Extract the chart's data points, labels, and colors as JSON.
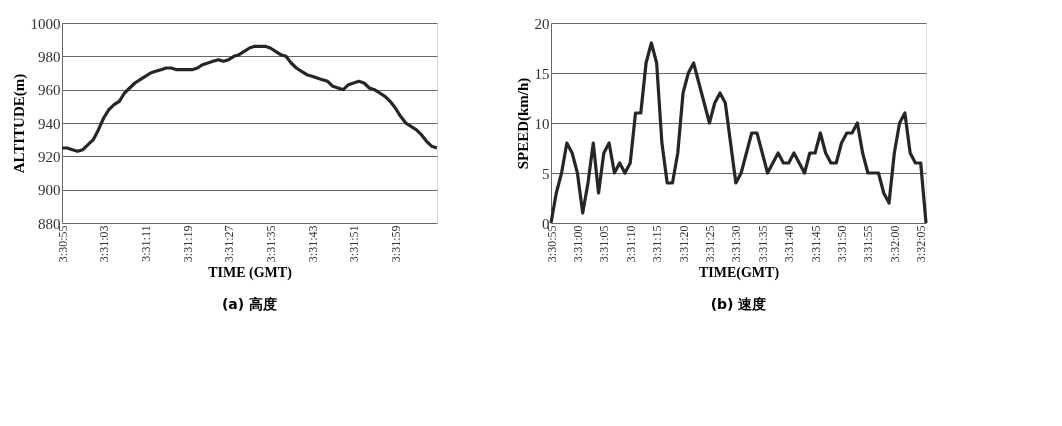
{
  "chart_data": [
    {
      "type": "line",
      "title": "(a)  高度",
      "xlabel": "TIME (GMT)",
      "ylabel": "ALTITUDE(m)",
      "categories": [
        "3:30:55",
        null,
        null,
        null,
        null,
        null,
        null,
        null,
        "3:31:03",
        null,
        null,
        null,
        null,
        null,
        null,
        null,
        "3:31:11",
        null,
        null,
        null,
        null,
        null,
        null,
        null,
        "3:31:19",
        null,
        null,
        null,
        null,
        null,
        null,
        null,
        "3:31:27",
        null,
        null,
        null,
        null,
        null,
        null,
        null,
        "3:31:35",
        null,
        null,
        null,
        null,
        null,
        null,
        null,
        "3:31:43",
        null,
        null,
        null,
        null,
        null,
        null,
        null,
        "3:31:51",
        null,
        null,
        null,
        null,
        null,
        null,
        null,
        "3:31:59",
        null,
        null,
        null,
        null,
        null,
        null,
        null,
        null
      ],
      "series": [
        {
          "color": "#262626",
          "values": [
            925,
            925,
            924,
            923,
            924,
            927,
            930,
            936,
            943,
            948,
            951,
            953,
            958,
            961,
            964,
            966,
            968,
            970,
            971,
            972,
            973,
            973,
            972,
            972,
            972,
            972,
            973,
            975,
            976,
            977,
            978,
            977,
            978,
            980,
            981,
            983,
            985,
            986,
            986,
            986,
            985,
            983,
            981,
            980,
            976,
            973,
            971,
            969,
            968,
            967,
            966,
            965,
            962,
            961,
            960,
            963,
            964,
            965,
            964,
            961,
            960,
            958,
            956,
            953,
            949,
            944,
            940,
            938,
            936,
            933,
            929,
            926,
            925
          ]
        }
      ],
      "ylim": [
        880,
        1000
      ],
      "yticks": [
        880,
        900,
        920,
        940,
        960,
        980,
        1000
      ],
      "grid": "y",
      "marker": "none",
      "line_style": "solid"
    },
    {
      "type": "line",
      "title": "(b)  速度",
      "xlabel": "TIME(GMT)",
      "ylabel": "SPEED(km/h)",
      "categories": [
        "3:30:55",
        null,
        null,
        null,
        null,
        "3:31:00",
        null,
        null,
        null,
        null,
        "3:31:05",
        null,
        null,
        null,
        null,
        "3:31:10",
        null,
        null,
        null,
        null,
        "3:31:15",
        null,
        null,
        null,
        null,
        "3:31:20",
        null,
        null,
        null,
        null,
        "3:31:25",
        null,
        null,
        null,
        null,
        "3:31:30",
        null,
        null,
        null,
        null,
        "3:31:35",
        null,
        null,
        null,
        null,
        "3:31:40",
        null,
        null,
        null,
        null,
        "3:31:45",
        null,
        null,
        null,
        null,
        "3:31:50",
        null,
        null,
        null,
        null,
        "3:31:55",
        null,
        null,
        null,
        null,
        "3:32:00",
        null,
        null,
        null,
        null,
        "3:32:05",
        null
      ],
      "series": [
        {
          "color": "#262626",
          "values": [
            0,
            3,
            5,
            8,
            7,
            5,
            1,
            4,
            8,
            3,
            7,
            8,
            5,
            6,
            5,
            6,
            11,
            11,
            16,
            18,
            16,
            8,
            4,
            4,
            7,
            13,
            15,
            16,
            14,
            12,
            10,
            12,
            13,
            12,
            8,
            4,
            5,
            7,
            9,
            9,
            7,
            5,
            6,
            7,
            6,
            6,
            7,
            6,
            5,
            7,
            7,
            9,
            7,
            6,
            6,
            8,
            9,
            9,
            10,
            7,
            5,
            5,
            5,
            3,
            2,
            7,
            10,
            11,
            7,
            6,
            6,
            0
          ]
        }
      ],
      "ylim": [
        0,
        20
      ],
      "yticks": [
        0,
        5,
        10,
        15,
        20
      ],
      "grid": "y",
      "marker": "none",
      "line_style": "solid"
    }
  ]
}
